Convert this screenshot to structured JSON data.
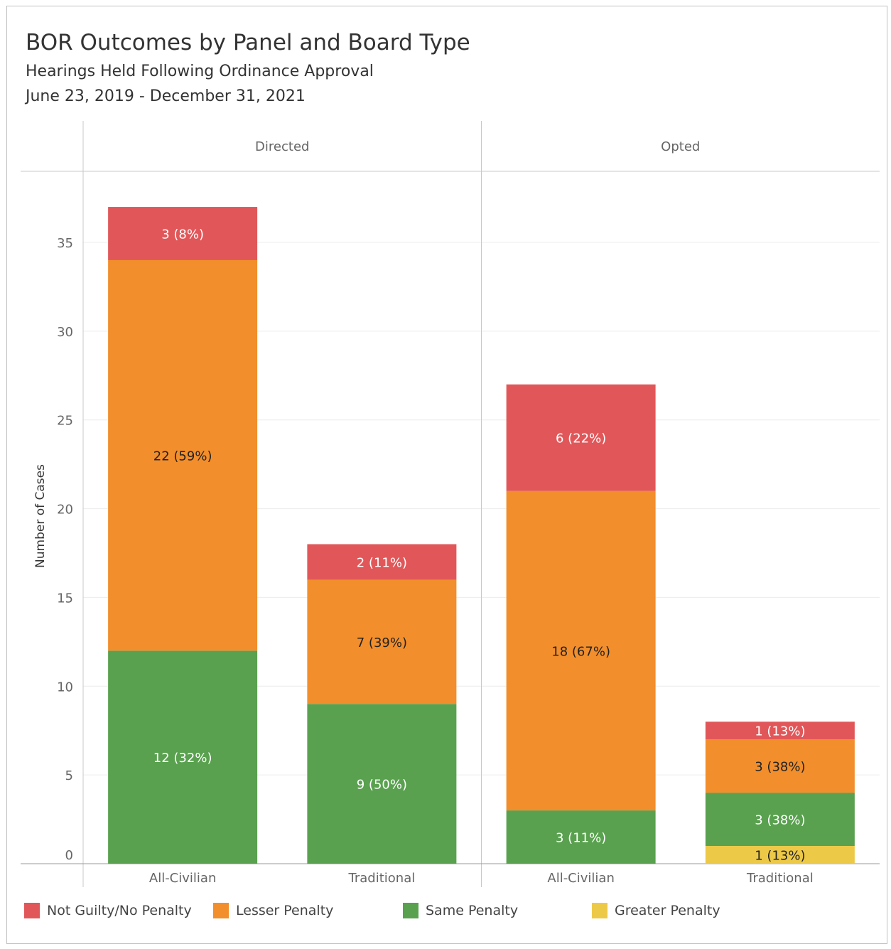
{
  "title": "BOR Outcomes by Panel and Board Type",
  "subtitle": "Hearings Held Following Ordinance Approval",
  "date_range": "June 23, 2019 - December 31, 2021",
  "colors": {
    "not_guilty": "#e15759",
    "lesser": "#f28e2b",
    "same": "#59a14f",
    "greater": "#edc948"
  },
  "legend": [
    {
      "label": "Not Guilty/No Penalty",
      "color": "#e15759"
    },
    {
      "label": "Lesser Penalty",
      "color": "#f28e2b"
    },
    {
      "label": "Same Penalty",
      "color": "#59a14f"
    },
    {
      "label": "Greater Penalty",
      "color": "#edc948"
    }
  ],
  "chart_data": {
    "type": "bar",
    "stacked": true,
    "title": "BOR Outcomes by Panel and Board Type",
    "ylabel": "Number of Cases",
    "ylim": [
      0,
      37
    ],
    "yticks": [
      0,
      5,
      10,
      15,
      20,
      25,
      30,
      35
    ],
    "panels": [
      "Directed",
      "Opted"
    ],
    "categories": [
      "All-Civilian",
      "Traditional",
      "All-Civilian",
      "Traditional"
    ],
    "category_panels": [
      "Directed",
      "Directed",
      "Opted",
      "Opted"
    ],
    "series": [
      {
        "name": "Greater Penalty",
        "color": "#edc948",
        "values": [
          0,
          0,
          0,
          1
        ],
        "labels": [
          "",
          "",
          "",
          "1 (13%)"
        ]
      },
      {
        "name": "Same Penalty",
        "color": "#59a14f",
        "values": [
          12,
          9,
          3,
          3
        ],
        "labels": [
          "12 (32%)",
          "9 (50%)",
          "3 (11%)",
          "3 (38%)"
        ]
      },
      {
        "name": "Lesser Penalty",
        "color": "#f28e2b",
        "values": [
          22,
          7,
          18,
          3
        ],
        "labels": [
          "22 (59%)",
          "7 (39%)",
          "18 (67%)",
          "3 (38%)"
        ]
      },
      {
        "name": "Not Guilty/No Penalty",
        "color": "#e15759",
        "values": [
          3,
          2,
          6,
          1
        ],
        "labels": [
          "3 (8%)",
          "2 (11%)",
          "6 (22%)",
          "1 (13%)"
        ]
      }
    ],
    "grid": true,
    "legend_position": "bottom"
  }
}
